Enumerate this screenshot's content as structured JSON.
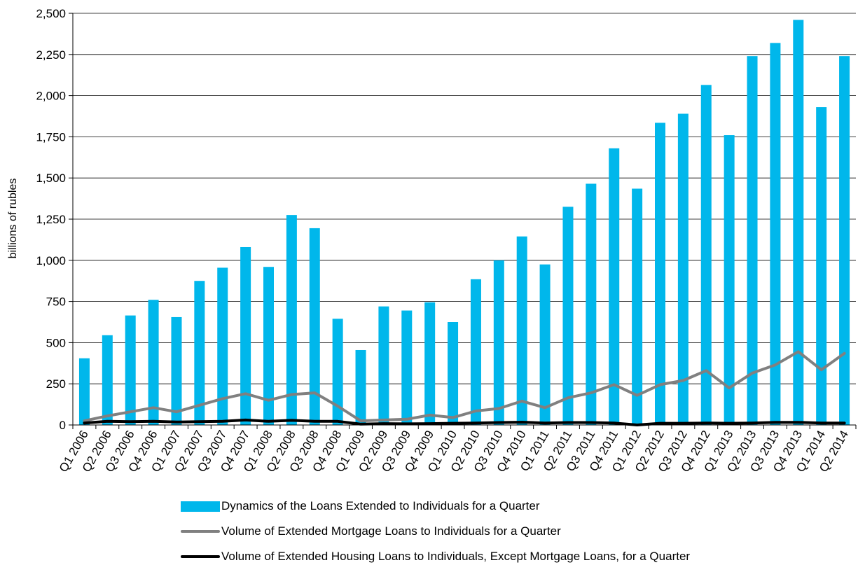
{
  "chart_data": {
    "type": "bar",
    "ylabel": "billions of rubles",
    "ylim": [
      0,
      2500
    ],
    "yticks": [
      "0",
      "250",
      "500",
      "750",
      "1,000",
      "1,250",
      "1,500",
      "1,750",
      "2,000",
      "2,250",
      "2,500"
    ],
    "ytick_values": [
      0,
      250,
      500,
      750,
      1000,
      1250,
      1500,
      1750,
      2000,
      2250,
      2500
    ],
    "grid": true,
    "legend_position": "bottom",
    "categories": [
      "Q1 2006",
      "Q2 2006",
      "Q3 2006",
      "Q4 2006",
      "Q1 2007",
      "Q2 2007",
      "Q3 2007",
      "Q4 2007",
      "Q1 2008",
      "Q2 2008",
      "Q3 2008",
      "Q4 2008",
      "Q1 2009",
      "Q2 2009",
      "Q3 2009",
      "Q4 2009",
      "Q1 2010",
      "Q2 2010",
      "Q3 2010",
      "Q4 2010",
      "Q1 2011",
      "Q2 2011",
      "Q3 2011",
      "Q4 2011",
      "Q1 2012",
      "Q2 2012",
      "Q3 2012",
      "Q4 2012",
      "Q1 2013",
      "Q2 2013",
      "Q3 2013",
      "Q4 2013",
      "Q1 2014",
      "Q2 2014"
    ],
    "series": [
      {
        "name": "Dynamics of the Loans Extended to Individuals for a Quarter",
        "kind": "bar",
        "color": "#00B7EB",
        "values": [
          405,
          545,
          665,
          760,
          655,
          875,
          955,
          1080,
          960,
          1275,
          1195,
          645,
          455,
          720,
          695,
          745,
          625,
          885,
          1000,
          1145,
          975,
          1325,
          1465,
          1680,
          1435,
          1835,
          1890,
          2065,
          1760,
          2240,
          2320,
          2460,
          1930,
          2240
        ]
      },
      {
        "name": "Volume of Extended Mortgage Loans to Individuals  for a Quarter",
        "kind": "line",
        "color": "#808080",
        "values": [
          25,
          55,
          80,
          105,
          80,
          120,
          160,
          190,
          150,
          185,
          195,
          115,
          25,
          30,
          35,
          60,
          45,
          85,
          100,
          145,
          105,
          165,
          195,
          245,
          180,
          245,
          270,
          330,
          225,
          315,
          365,
          445,
          335,
          435
        ]
      },
      {
        "name": "Volume of Extended Housing Loans to Individuals, Except Mortgage Loans, for a Quarter",
        "kind": "line",
        "color": "#000000",
        "values": [
          12,
          22,
          20,
          22,
          18,
          20,
          22,
          30,
          22,
          28,
          22,
          22,
          5,
          8,
          7,
          8,
          10,
          12,
          15,
          17,
          12,
          15,
          15,
          12,
          0,
          10,
          10,
          12,
          10,
          12,
          16,
          16,
          12,
          12
        ]
      }
    ]
  }
}
